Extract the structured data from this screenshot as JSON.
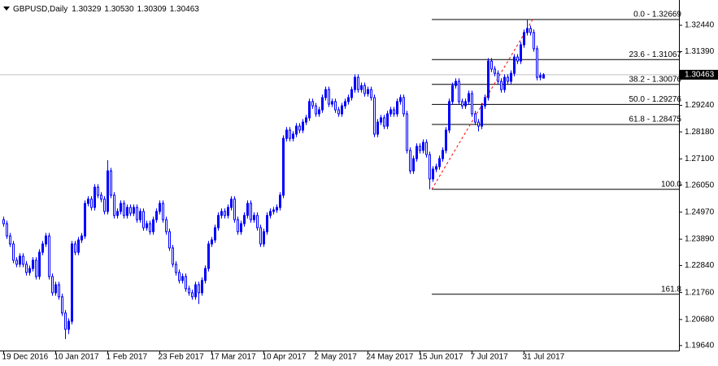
{
  "chart_data": {
    "type": "candlestick",
    "symbol": "GBPUSD,Daily",
    "header_ohlc": [
      "1.30329",
      "1.30530",
      "1.30309",
      "1.30463"
    ],
    "up_color": "#0000ff",
    "down_color": "#ffffff",
    "outline_color": "#0000ff",
    "grid": false,
    "ylim": [
      1.1944,
      1.3345
    ],
    "yticks": [
      {
        "value": 1.3244,
        "label": "1.32440"
      },
      {
        "value": 1.3139,
        "label": "1.31390"
      },
      {
        "value": 1.2924,
        "label": "1.29240"
      },
      {
        "value": 1.2818,
        "label": "1.28180"
      },
      {
        "value": 1.271,
        "label": "1.27100"
      },
      {
        "value": 1.2605,
        "label": "1.26050"
      },
      {
        "value": 1.2497,
        "label": "1.24970"
      },
      {
        "value": 1.2389,
        "label": "1.23890"
      },
      {
        "value": 1.2284,
        "label": "1.22840"
      },
      {
        "value": 1.2176,
        "label": "1.21760"
      },
      {
        "value": 1.2068,
        "label": "1.20680"
      },
      {
        "value": 1.1964,
        "label": "1.19640"
      }
    ],
    "current_price": {
      "value": 1.30463,
      "label": "1.30463"
    },
    "fibonacci": {
      "color": "#000000",
      "trend_color": "#ff0000",
      "levels": [
        {
          "value": 1.32669,
          "label": "0.0 - 1.32669"
        },
        {
          "value": 1.31067,
          "label": "23.6 - 1.31067"
        },
        {
          "value": 1.30076,
          "label": "38.2 - 1.30076"
        },
        {
          "value": 1.29276,
          "label": "50.0 - 1.29276"
        },
        {
          "value": 1.28475,
          "label": "61.8 - 1.28475"
        },
        {
          "value": 1.25883,
          "label": "100.0"
        },
        {
          "value": 1.21689,
          "label": "161.8"
        }
      ]
    },
    "categories": [
      "19 Dec 2016",
      null,
      null,
      null,
      null,
      null,
      null,
      null,
      null,
      null,
      null,
      null,
      null,
      null,
      null,
      null,
      "10 Jan 2017",
      null,
      null,
      null,
      null,
      null,
      null,
      null,
      null,
      null,
      null,
      null,
      null,
      null,
      null,
      null,
      "1 Feb 2017",
      null,
      null,
      null,
      null,
      null,
      null,
      null,
      null,
      null,
      null,
      null,
      null,
      null,
      null,
      null,
      "23 Feb 2017",
      null,
      null,
      null,
      null,
      null,
      null,
      null,
      null,
      null,
      null,
      null,
      null,
      null,
      null,
      null,
      "17 Mar 2017",
      null,
      null,
      null,
      null,
      null,
      null,
      null,
      null,
      null,
      null,
      null,
      null,
      null,
      null,
      null,
      "10 Apr 2017",
      null,
      null,
      null,
      null,
      null,
      null,
      null,
      null,
      null,
      null,
      null,
      null,
      null,
      null,
      null,
      "2 May 2017",
      null,
      null,
      null,
      null,
      null,
      null,
      null,
      null,
      null,
      null,
      null,
      null,
      null,
      null,
      null,
      "24 May 2017",
      null,
      null,
      null,
      null,
      null,
      null,
      null,
      null,
      null,
      null,
      null,
      null,
      null,
      null,
      null,
      "15 Jun 2017",
      null,
      null,
      null,
      null,
      null,
      null,
      null,
      null,
      null,
      null,
      null,
      null,
      null,
      null,
      null,
      "7 Jul 2017",
      null,
      null,
      null,
      null,
      null,
      null,
      null,
      null,
      null,
      null,
      null,
      null,
      null,
      null,
      null,
      "31 Jul 2017",
      null,
      null,
      null,
      null,
      null,
      null
    ],
    "open": [
      1.2467,
      1.2451,
      1.2402,
      1.237,
      1.2305,
      1.2289,
      1.2321,
      1.2289,
      1.2256,
      1.2272,
      1.2305,
      1.224,
      1.2337,
      1.237,
      1.2402,
      1.224,
      1.2175,
      1.2207,
      1.2159,
      1.2094,
      1.2029,
      1.2061,
      1.237,
      1.2337,
      1.2386,
      1.2402,
      1.2532,
      1.2549,
      1.2516,
      1.2597,
      1.2565,
      1.2549,
      1.25,
      1.2662,
      1.2565,
      1.2484,
      1.25,
      1.2532,
      1.2484,
      1.2516,
      1.2493,
      1.2516,
      1.2467,
      1.25,
      1.2435,
      1.2451,
      1.2419,
      1.2467,
      1.25,
      1.2532,
      1.2467,
      1.2419,
      1.2354,
      1.2289,
      1.2256,
      1.2224,
      1.224,
      1.2191,
      1.2175,
      1.2159,
      1.2207,
      1.2175,
      1.2224,
      1.2272,
      1.237,
      1.2386,
      1.2435,
      1.2484,
      1.25,
      1.2484,
      1.2516,
      1.2549,
      1.2467,
      1.2419,
      1.2451,
      1.2484,
      1.2532,
      1.2467,
      1.2484,
      1.2435,
      1.237,
      1.2419,
      1.2484,
      1.25,
      1.2506,
      1.2516,
      1.2565,
      1.2792,
      1.2825,
      1.2792,
      1.2809,
      1.2841,
      1.2825,
      1.2857,
      1.2874,
      1.2939,
      1.2922,
      1.289,
      1.2906,
      1.2955,
      1.2987,
      1.2929,
      1.2939,
      1.2906,
      1.289,
      1.2922,
      1.2939,
      1.2955,
      1.2987,
      1.3036,
      1.2987,
      1.3003,
      1.2971,
      1.2987,
      1.2955,
      1.2809,
      1.2857,
      1.2874,
      1.2841,
      1.289,
      1.2906,
      1.289,
      1.2939,
      1.2955,
      1.289,
      1.2744,
      1.2662,
      1.2711,
      1.276,
      1.2744,
      1.2776,
      1.2727,
      1.263,
      1.2669,
      1.2679,
      1.2711,
      1.2744,
      1.2825,
      1.2939,
      1.3003,
      1.302,
      1.2939,
      1.2922,
      1.2939,
      1.2971,
      1.289,
      1.2857,
      1.2841,
      1.2922,
      1.2955,
      1.3101,
      1.3069,
      1.3052,
      1.302,
      1.2987,
      1.3036,
      1.302,
      1.3052,
      1.3117,
      1.3101,
      1.3166,
      1.3215,
      1.3231,
      1.3215,
      1.315,
      1.3036,
      1.30329
    ],
    "high": [
      1.2479,
      1.2463,
      1.2414,
      1.2382,
      1.2317,
      1.2333,
      1.2333,
      1.2301,
      1.2284,
      1.2317,
      1.2317,
      1.2349,
      1.2382,
      1.2414,
      1.2414,
      1.2252,
      1.2219,
      1.2219,
      1.2171,
      1.2106,
      1.2073,
      1.2382,
      1.2382,
      1.2398,
      1.2414,
      1.2544,
      1.2561,
      1.2561,
      1.2609,
      1.2609,
      1.2577,
      1.2561,
      1.2705,
      1.2674,
      1.2577,
      1.2512,
      1.2544,
      1.2544,
      1.2528,
      1.2528,
      1.2528,
      1.2528,
      1.2512,
      1.2512,
      1.2463,
      1.2463,
      1.2479,
      1.2512,
      1.2544,
      1.2544,
      1.2479,
      1.2431,
      1.2366,
      1.2301,
      1.2268,
      1.2252,
      1.2252,
      1.2203,
      1.2187,
      1.2219,
      1.2219,
      1.2236,
      1.2284,
      1.2382,
      1.2398,
      1.2447,
      1.2496,
      1.2512,
      1.2512,
      1.2528,
      1.2561,
      1.2561,
      1.2479,
      1.2463,
      1.2496,
      1.2544,
      1.2544,
      1.2496,
      1.2496,
      1.2447,
      1.2431,
      1.2496,
      1.2512,
      1.2518,
      1.2528,
      1.2577,
      1.2804,
      1.2837,
      1.2837,
      1.2821,
      1.2853,
      1.2853,
      1.2869,
      1.2886,
      1.2951,
      1.2951,
      1.2934,
      1.2918,
      1.2967,
      1.2999,
      1.2999,
      1.2951,
      1.2951,
      1.2918,
      1.2934,
      1.2951,
      1.2967,
      1.2999,
      1.3048,
      1.3048,
      1.3015,
      1.3015,
      1.2999,
      1.2999,
      1.2967,
      1.2869,
      1.2886,
      1.2886,
      1.2902,
      1.2918,
      1.2918,
      1.2951,
      1.2967,
      1.2967,
      1.2902,
      1.2756,
      1.2723,
      1.2772,
      1.2772,
      1.2788,
      1.2788,
      1.2739,
      1.2681,
      1.2691,
      1.2723,
      1.2756,
      1.2837,
      1.2951,
      1.3015,
      1.3032,
      1.3032,
      1.2951,
      1.2951,
      1.2983,
      1.2983,
      1.2902,
      1.2869,
      1.2934,
      1.2967,
      1.3113,
      1.3113,
      1.3081,
      1.3064,
      1.3032,
      1.3048,
      1.3048,
      1.3064,
      1.3129,
      1.3129,
      1.3178,
      1.3227,
      1.32669,
      1.3243,
      1.3227,
      1.3162,
      1.3055,
      1.3053
    ],
    "low": [
      1.2439,
      1.239,
      1.2358,
      1.2293,
      1.2277,
      1.2277,
      1.2277,
      1.2244,
      1.2244,
      1.226,
      1.2228,
      1.2228,
      1.2325,
      1.2358,
      1.2228,
      1.2163,
      1.2163,
      1.2147,
      1.2082,
      1.199,
      1.201,
      1.2049,
      1.2325,
      1.2325,
      1.2374,
      1.239,
      1.252,
      1.2504,
      1.2504,
      1.2553,
      1.2537,
      1.2488,
      1.2488,
      1.2553,
      1.2472,
      1.2472,
      1.2488,
      1.2472,
      1.2472,
      1.2481,
      1.2481,
      1.2455,
      1.2455,
      1.2423,
      1.2423,
      1.2407,
      1.2407,
      1.2455,
      1.2488,
      1.2455,
      1.2407,
      1.2342,
      1.2277,
      1.2244,
      1.2212,
      1.2212,
      1.2179,
      1.2163,
      1.2147,
      1.2147,
      1.213,
      1.2163,
      1.2212,
      1.226,
      1.2358,
      1.2374,
      1.2423,
      1.2472,
      1.2472,
      1.2472,
      1.2504,
      1.2455,
      1.2407,
      1.2407,
      1.2439,
      1.2472,
      1.2455,
      1.2455,
      1.2423,
      1.2358,
      1.2358,
      1.2407,
      1.2472,
      1.2488,
      1.2494,
      1.2504,
      1.2553,
      1.278,
      1.278,
      1.278,
      1.2797,
      1.2813,
      1.2813,
      1.2845,
      1.2862,
      1.291,
      1.2878,
      1.2878,
      1.2894,
      1.2943,
      1.2917,
      1.2917,
      1.2894,
      1.2878,
      1.2878,
      1.291,
      1.2927,
      1.2943,
      1.2975,
      1.2975,
      1.2975,
      1.2959,
      1.2959,
      1.2943,
      1.2797,
      1.2797,
      1.2845,
      1.2829,
      1.2829,
      1.2878,
      1.2878,
      1.2878,
      1.2927,
      1.2878,
      1.2732,
      1.265,
      1.265,
      1.2699,
      1.2732,
      1.2732,
      1.2715,
      1.25883,
      1.2618,
      1.2657,
      1.2667,
      1.2699,
      1.2732,
      1.2813,
      1.2927,
      1.2991,
      1.2927,
      1.291,
      1.291,
      1.2927,
      1.2878,
      1.2845,
      1.282,
      1.2829,
      1.291,
      1.2943,
      1.3057,
      1.304,
      1.3008,
      1.2975,
      1.2975,
      1.3008,
      1.3008,
      1.304,
      1.3089,
      1.3089,
      1.3154,
      1.3203,
      1.3203,
      1.3138,
      1.3024,
      1.3024,
      1.30309
    ],
    "close": [
      1.2451,
      1.2402,
      1.237,
      1.2305,
      1.2289,
      1.2321,
      1.2289,
      1.2256,
      1.2272,
      1.2305,
      1.224,
      1.2337,
      1.237,
      1.2402,
      1.224,
      1.2175,
      1.2207,
      1.2159,
      1.2094,
      1.2029,
      1.2061,
      1.237,
      1.2337,
      1.2386,
      1.2402,
      1.2532,
      1.2549,
      1.2516,
      1.2597,
      1.2565,
      1.2549,
      1.25,
      1.2662,
      1.2565,
      1.2484,
      1.25,
      1.2532,
      1.2484,
      1.2516,
      1.2493,
      1.2516,
      1.2467,
      1.25,
      1.2435,
      1.2451,
      1.2419,
      1.2467,
      1.25,
      1.2532,
      1.2467,
      1.2419,
      1.2354,
      1.2289,
      1.2256,
      1.2224,
      1.224,
      1.2191,
      1.2175,
      1.2159,
      1.2207,
      1.2175,
      1.2224,
      1.2272,
      1.237,
      1.2386,
      1.2435,
      1.2484,
      1.25,
      1.2484,
      1.2516,
      1.2549,
      1.2467,
      1.2419,
      1.2451,
      1.2484,
      1.2532,
      1.2467,
      1.2484,
      1.2435,
      1.237,
      1.2419,
      1.2484,
      1.25,
      1.2506,
      1.2516,
      1.2565,
      1.2792,
      1.2825,
      1.2792,
      1.2809,
      1.2841,
      1.2825,
      1.2857,
      1.2874,
      1.2939,
      1.2922,
      1.289,
      1.2906,
      1.2955,
      1.2987,
      1.2929,
      1.2939,
      1.2906,
      1.289,
      1.2922,
      1.2939,
      1.2955,
      1.2987,
      1.3036,
      1.2987,
      1.3003,
      1.2971,
      1.2987,
      1.2955,
      1.2809,
      1.2857,
      1.2874,
      1.2841,
      1.289,
      1.2906,
      1.289,
      1.2939,
      1.2955,
      1.289,
      1.2744,
      1.2662,
      1.2711,
      1.276,
      1.2744,
      1.2776,
      1.2727,
      1.263,
      1.2669,
      1.2679,
      1.2711,
      1.2744,
      1.2825,
      1.2939,
      1.3003,
      1.302,
      1.2939,
      1.2922,
      1.2939,
      1.2971,
      1.289,
      1.2857,
      1.2841,
      1.2922,
      1.2955,
      1.3101,
      1.3069,
      1.3052,
      1.302,
      1.2987,
      1.3036,
      1.302,
      1.3052,
      1.3117,
      1.3101,
      1.3166,
      1.3215,
      1.3231,
      1.3215,
      1.315,
      1.3036,
      1.3043,
      1.30463
    ]
  }
}
